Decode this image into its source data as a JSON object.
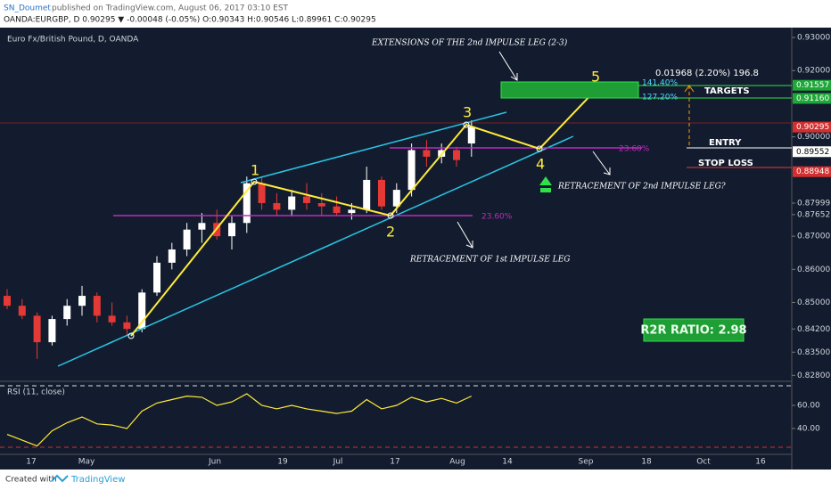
{
  "header": {
    "author": "SN_Doumet",
    "published": "published on TradingView.com, August 06, 2017 03:10 EST",
    "quote": "OANDA:EURGBP, D  0.90295 ▼ -0.00048 (-0.05%) O:0.90343 H:0.90546 L:0.89961 C:0.90295"
  },
  "footer": {
    "created": "Created with",
    "brand": "TradingView"
  },
  "chart_data": {
    "type": "candlestick",
    "title": "Euro Fx/British Pound, D, OANDA",
    "up_color": "#ffffff",
    "down_color": "#e53935",
    "open": [
      0.852,
      0.849,
      0.846,
      0.838,
      0.845,
      0.849,
      0.852,
      0.846,
      0.844,
      0.842,
      0.853,
      0.862,
      0.866,
      0.872,
      0.874,
      0.87,
      0.874,
      0.886,
      0.88,
      0.878,
      0.882,
      0.88,
      0.879,
      0.877,
      0.878,
      0.887,
      0.879,
      0.884,
      0.896,
      0.894,
      0.896,
      0.898
    ],
    "high": [
      0.854,
      0.851,
      0.847,
      0.846,
      0.851,
      0.855,
      0.853,
      0.85,
      0.846,
      0.854,
      0.864,
      0.868,
      0.874,
      0.877,
      0.878,
      0.876,
      0.888,
      0.888,
      0.883,
      0.884,
      0.886,
      0.883,
      0.882,
      0.88,
      0.891,
      0.888,
      0.886,
      0.898,
      0.899,
      0.898,
      0.897,
      0.905
    ],
    "low": [
      0.848,
      0.845,
      0.833,
      0.837,
      0.843,
      0.846,
      0.844,
      0.843,
      0.84,
      0.841,
      0.852,
      0.86,
      0.864,
      0.868,
      0.869,
      0.866,
      0.871,
      0.878,
      0.876,
      0.876,
      0.878,
      0.876,
      0.876,
      0.875,
      0.877,
      0.878,
      0.877,
      0.882,
      0.891,
      0.892,
      0.891,
      0.894
    ],
    "close": [
      0.849,
      0.846,
      0.838,
      0.845,
      0.849,
      0.852,
      0.846,
      0.844,
      0.842,
      0.853,
      0.862,
      0.866,
      0.872,
      0.874,
      0.87,
      0.874,
      0.886,
      0.88,
      0.878,
      0.882,
      0.88,
      0.879,
      0.877,
      0.878,
      0.887,
      0.879,
      0.884,
      0.896,
      0.894,
      0.896,
      0.893,
      0.903
    ],
    "ylim": [
      0.8262,
      0.9319
    ],
    "yticks": [
      {
        "value": 0.93,
        "label": "0.93000"
      },
      {
        "value": 0.92,
        "label": "0.92000"
      },
      {
        "value": 0.9,
        "label": "0.90000"
      },
      {
        "value": 0.87999,
        "label": "0.87999"
      },
      {
        "value": 0.87652,
        "label": "0.87652"
      },
      {
        "value": 0.87,
        "label": "0.87000"
      },
      {
        "value": 0.86,
        "label": "0.86000"
      },
      {
        "value": 0.85,
        "label": "0.85000"
      },
      {
        "value": 0.842,
        "label": "0.84200"
      },
      {
        "value": 0.835,
        "label": "0.83500"
      },
      {
        "value": 0.828,
        "label": "0.82800"
      }
    ],
    "price_tags": [
      {
        "value": 0.91557,
        "label": "0.91557",
        "color": "#1fa83a"
      },
      {
        "value": 0.9116,
        "label": "0.91160",
        "color": "#1fa83a"
      },
      {
        "value": 0.90295,
        "label": "0.90295",
        "color": "#d32f2f"
      },
      {
        "value": 0.89552,
        "label": "0.89552",
        "color": "#ffffff"
      },
      {
        "value": 0.88948,
        "label": "0.88948",
        "color": "#d32f2f"
      }
    ],
    "x_labels": [
      "17",
      "May",
      "Jun",
      "19",
      "Jul",
      "17",
      "Aug",
      "14",
      "Sep",
      "18",
      "Oct",
      "16"
    ],
    "rsi": {
      "title": "RSI (11, close)",
      "color": "#ffeb3b",
      "values": [
        35,
        30,
        25,
        38,
        45,
        50,
        44,
        43,
        40,
        55,
        62,
        65,
        68,
        67,
        60,
        63,
        70,
        60,
        57,
        60,
        57,
        55,
        53,
        55,
        65,
        57,
        60,
        67,
        63,
        66,
        62,
        68
      ],
      "ylim": [
        10,
        77.7
      ],
      "yticks": [
        {
          "value": 60,
          "label": "60.00"
        },
        {
          "value": 40,
          "label": "40.00"
        }
      ]
    },
    "annotations": {
      "extensions": "EXTENSIONS OF THE 2nd IMPULSE LEG (2-3)",
      "retr1": "RETRACEMENT OF 1st IMPULSE LEG",
      "retr2": "RETRACEMENT OF 2nd IMPULSE LEG?",
      "fib1": "23.60%",
      "fib2": "23.60%",
      "ext1": "141.40%",
      "ext2": "127.20%",
      "measure": "0.01968 (2.20%) 196.8",
      "targets": "TARGETS",
      "entry": "ENTRY",
      "stop": "STOP LOSS",
      "r2r": "R2R RATIO: 2.98",
      "waves": [
        "1",
        "2",
        "3",
        "4",
        "5"
      ]
    }
  }
}
